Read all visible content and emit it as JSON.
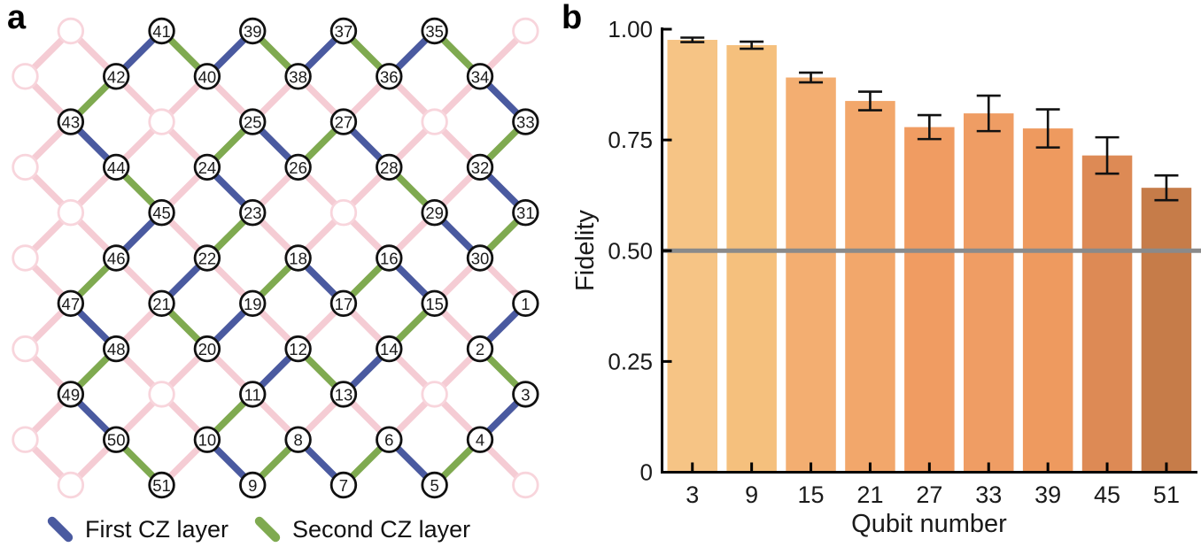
{
  "panel_a": {
    "label": "a",
    "legend": [
      {
        "label": "First CZ layer",
        "color": "#4a5aa0"
      },
      {
        "label": "Second CZ layer",
        "color": "#7faa50"
      }
    ],
    "colors": {
      "first_cz": "#4a5aa0",
      "second_cz": "#7faa50",
      "lattice": "#f5ccd4",
      "faded_node_stroke": "#f8d5dc",
      "node_stroke": "#111111",
      "node_fill": "#ffffff",
      "node_text": "#1a1a1a"
    },
    "nodes": [
      {
        "id": 41,
        "c": 3,
        "r": 0
      },
      {
        "id": 39,
        "c": 5,
        "r": 0
      },
      {
        "id": 37,
        "c": 7,
        "r": 0
      },
      {
        "id": 35,
        "c": 9,
        "r": 0
      },
      {
        "id": 42,
        "c": 2,
        "r": 1
      },
      {
        "id": 40,
        "c": 4,
        "r": 1
      },
      {
        "id": 38,
        "c": 6,
        "r": 1
      },
      {
        "id": 36,
        "c": 8,
        "r": 1
      },
      {
        "id": 34,
        "c": 10,
        "r": 1
      },
      {
        "id": 43,
        "c": 1,
        "r": 2
      },
      {
        "id": 25,
        "c": 5,
        "r": 2
      },
      {
        "id": 27,
        "c": 7,
        "r": 2
      },
      {
        "id": 33,
        "c": 11,
        "r": 2
      },
      {
        "id": 44,
        "c": 2,
        "r": 3
      },
      {
        "id": 24,
        "c": 4,
        "r": 3
      },
      {
        "id": 26,
        "c": 6,
        "r": 3
      },
      {
        "id": 28,
        "c": 8,
        "r": 3
      },
      {
        "id": 32,
        "c": 10,
        "r": 3
      },
      {
        "id": 45,
        "c": 3,
        "r": 4
      },
      {
        "id": 23,
        "c": 5,
        "r": 4
      },
      {
        "id": 29,
        "c": 9,
        "r": 4
      },
      {
        "id": 31,
        "c": 11,
        "r": 4
      },
      {
        "id": 46,
        "c": 2,
        "r": 5
      },
      {
        "id": 22,
        "c": 4,
        "r": 5
      },
      {
        "id": 18,
        "c": 6,
        "r": 5
      },
      {
        "id": 16,
        "c": 8,
        "r": 5
      },
      {
        "id": 30,
        "c": 10,
        "r": 5
      },
      {
        "id": 47,
        "c": 1,
        "r": 6
      },
      {
        "id": 21,
        "c": 3,
        "r": 6
      },
      {
        "id": 19,
        "c": 5,
        "r": 6
      },
      {
        "id": 17,
        "c": 7,
        "r": 6
      },
      {
        "id": 15,
        "c": 9,
        "r": 6
      },
      {
        "id": 1,
        "c": 11,
        "r": 6
      },
      {
        "id": 48,
        "c": 2,
        "r": 7
      },
      {
        "id": 20,
        "c": 4,
        "r": 7
      },
      {
        "id": 12,
        "c": 6,
        "r": 7
      },
      {
        "id": 14,
        "c": 8,
        "r": 7
      },
      {
        "id": 2,
        "c": 10,
        "r": 7
      },
      {
        "id": 49,
        "c": 1,
        "r": 8
      },
      {
        "id": 11,
        "c": 5,
        "r": 8
      },
      {
        "id": 13,
        "c": 7,
        "r": 8
      },
      {
        "id": 3,
        "c": 11,
        "r": 8
      },
      {
        "id": 50,
        "c": 2,
        "r": 9
      },
      {
        "id": 10,
        "c": 4,
        "r": 9
      },
      {
        "id": 8,
        "c": 6,
        "r": 9
      },
      {
        "id": 6,
        "c": 8,
        "r": 9
      },
      {
        "id": 4,
        "c": 10,
        "r": 9
      },
      {
        "id": 51,
        "c": 3,
        "r": 10
      },
      {
        "id": 9,
        "c": 5,
        "r": 10
      },
      {
        "id": 7,
        "c": 7,
        "r": 10
      },
      {
        "id": 5,
        "c": 9,
        "r": 10
      }
    ],
    "faded_nodes": [
      [
        1,
        0
      ],
      [
        11,
        0
      ],
      [
        0,
        1
      ],
      [
        3,
        2
      ],
      [
        9,
        2
      ],
      [
        0,
        3
      ],
      [
        1,
        4
      ],
      [
        7,
        4
      ],
      [
        0,
        5
      ],
      [
        0,
        7
      ],
      [
        3,
        8
      ],
      [
        9,
        8
      ],
      [
        0,
        9
      ],
      [
        1,
        10
      ],
      [
        11,
        10
      ]
    ],
    "first_cz_edges": [
      [
        41,
        42
      ],
      [
        39,
        40
      ],
      [
        37,
        38
      ],
      [
        35,
        36
      ],
      [
        34,
        33
      ],
      [
        43,
        44
      ],
      [
        25,
        26
      ],
      [
        27,
        28
      ],
      [
        24,
        23
      ],
      [
        45,
        46
      ],
      [
        32,
        31
      ],
      [
        29,
        30
      ],
      [
        22,
        21
      ],
      [
        18,
        17
      ],
      [
        16,
        15
      ],
      [
        47,
        48
      ],
      [
        19,
        20
      ],
      [
        1,
        2
      ],
      [
        49,
        50
      ],
      [
        12,
        11
      ],
      [
        14,
        13
      ],
      [
        3,
        4
      ],
      [
        10,
        9
      ],
      [
        8,
        7
      ],
      [
        6,
        5
      ]
    ],
    "second_cz_edges": [
      [
        41,
        40
      ],
      [
        42,
        43
      ],
      [
        39,
        38
      ],
      [
        37,
        36
      ],
      [
        35,
        34
      ],
      [
        33,
        32
      ],
      [
        25,
        24
      ],
      [
        27,
        26
      ],
      [
        44,
        45
      ],
      [
        23,
        22
      ],
      [
        46,
        47
      ],
      [
        21,
        20
      ],
      [
        19,
        18
      ],
      [
        28,
        29
      ],
      [
        31,
        30
      ],
      [
        16,
        17
      ],
      [
        15,
        14
      ],
      [
        48,
        49
      ],
      [
        50,
        51
      ],
      [
        11,
        10
      ],
      [
        9,
        8
      ],
      [
        12,
        13
      ],
      [
        2,
        3
      ],
      [
        6,
        7
      ],
      [
        4,
        5
      ]
    ]
  },
  "panel_b": {
    "label": "b"
  },
  "chart_data": {
    "type": "bar",
    "title": "",
    "xlabel": "Qubit number",
    "ylabel": "Fidelity",
    "categories": [
      "3",
      "9",
      "15",
      "21",
      "27",
      "33",
      "39",
      "45",
      "51"
    ],
    "values": [
      0.976,
      0.964,
      0.891,
      0.838,
      0.779,
      0.81,
      0.776,
      0.715,
      0.642
    ],
    "error_bars": [
      0.005,
      0.008,
      0.011,
      0.021,
      0.027,
      0.04,
      0.043,
      0.041,
      0.028
    ],
    "bar_colors": [
      "#f6c485",
      "#f5c07d",
      "#f3ae71",
      "#f2a76b",
      "#f09c62",
      "#ef9d64",
      "#ee9a5f",
      "#dd8a55",
      "#c67c49"
    ],
    "ylim": [
      0,
      1.0
    ],
    "yticks": [
      0,
      0.25,
      0.5,
      0.75,
      1.0
    ],
    "ytick_labels": [
      "0",
      "0.25",
      "0.50",
      "0.75",
      "1.00"
    ],
    "reference_line": {
      "y": 0.5,
      "color": "#8a8a8a"
    },
    "grid": false,
    "legend_position": "none",
    "axis_color": "#000000",
    "text_color": "#1a1a1a"
  }
}
